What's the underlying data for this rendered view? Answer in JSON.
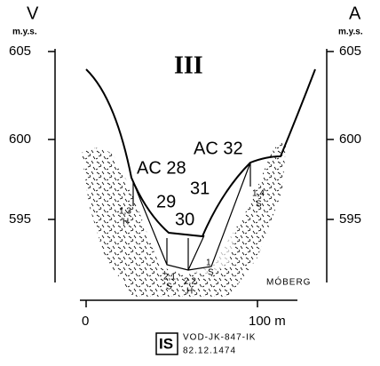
{
  "axes": {
    "left": {
      "title": "V",
      "unit": "m.y.s.",
      "ticks": [
        605,
        600,
        595
      ]
    },
    "right": {
      "title": "A",
      "unit": "m.y.s.",
      "ticks": [
        605,
        600,
        595
      ]
    },
    "bottom": {
      "ticks": [
        0,
        "100 m"
      ]
    }
  },
  "section_label": "III",
  "layers": [
    "AC 28",
    "AC 32",
    "29",
    "31",
    "30"
  ],
  "annotations": [
    [
      "1,3",
      "H"
    ],
    [
      "1,4",
      "S"
    ],
    [
      "2,1",
      "S"
    ],
    [
      "2,2",
      "H"
    ],
    [
      "1",
      "S"
    ]
  ],
  "soil": "MÓBERG",
  "stamp": {
    "logo": "IS",
    "code": "VOD-JK-847-IK",
    "number": "82.12.1474"
  }
}
